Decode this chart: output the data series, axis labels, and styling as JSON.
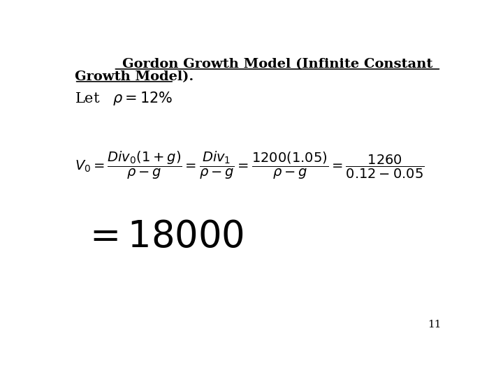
{
  "title_line1": "Gordon Growth Model (Infinite Constant",
  "title_line2": "Growth Model).",
  "rho_eq": "\\rho = 12\\%",
  "formula": "$V_0 = \\dfrac{Div_0(1+g)}{\\rho - g} = \\dfrac{Div_1}{\\rho - g} = \\dfrac{1200(1.05)}{\\rho - g} = \\dfrac{1260}{0.12 - 0.05}$",
  "result": "$= 18000$",
  "page_number": "11",
  "bg_color": "#ffffff",
  "text_color": "#000000",
  "title_fontsize": 14,
  "let_fontsize": 15,
  "formula_fontsize": 14,
  "result_fontsize": 38,
  "page_fontsize": 11
}
